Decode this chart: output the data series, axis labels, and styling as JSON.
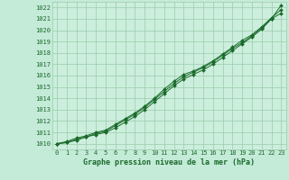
{
  "title": "Graphe pression niveau de la mer (hPa)",
  "bg_color": "#c4ead8",
  "plot_bg_color": "#cceedd",
  "grid_color": "#99ccaa",
  "line_color": "#1a6b2a",
  "marker_color": "#1a6b2a",
  "xlim": [
    -0.5,
    23.5
  ],
  "ylim": [
    1009.5,
    1022.5
  ],
  "xticks": [
    0,
    1,
    2,
    3,
    4,
    5,
    6,
    7,
    8,
    9,
    10,
    11,
    12,
    13,
    14,
    15,
    16,
    17,
    18,
    19,
    20,
    21,
    22,
    23
  ],
  "yticks": [
    1010,
    1011,
    1012,
    1013,
    1014,
    1015,
    1016,
    1017,
    1018,
    1019,
    1020,
    1021,
    1022
  ],
  "series": [
    [
      1010.0,
      1010.1,
      1010.3,
      1010.6,
      1010.8,
      1011.0,
      1011.4,
      1011.9,
      1012.4,
      1013.0,
      1013.7,
      1014.4,
      1015.1,
      1015.7,
      1016.1,
      1016.5,
      1017.0,
      1017.6,
      1018.2,
      1018.8,
      1019.4,
      1020.1,
      1021.0,
      1021.5
    ],
    [
      1010.0,
      1010.2,
      1010.5,
      1010.7,
      1011.0,
      1011.2,
      1011.7,
      1012.2,
      1012.7,
      1013.3,
      1014.0,
      1014.8,
      1015.5,
      1016.1,
      1016.4,
      1016.8,
      1017.3,
      1017.9,
      1018.5,
      1019.1,
      1019.6,
      1020.3,
      1021.1,
      1021.8
    ],
    [
      1010.0,
      1010.1,
      1010.4,
      1010.6,
      1010.9,
      1011.1,
      1011.6,
      1012.1,
      1012.6,
      1013.2,
      1013.9,
      1014.6,
      1015.3,
      1015.9,
      1016.3,
      1016.7,
      1017.2,
      1017.8,
      1018.4,
      1018.9,
      1019.5,
      1020.2,
      1021.0,
      1022.2
    ]
  ],
  "title_fontsize": 6,
  "tick_fontsize": 5
}
